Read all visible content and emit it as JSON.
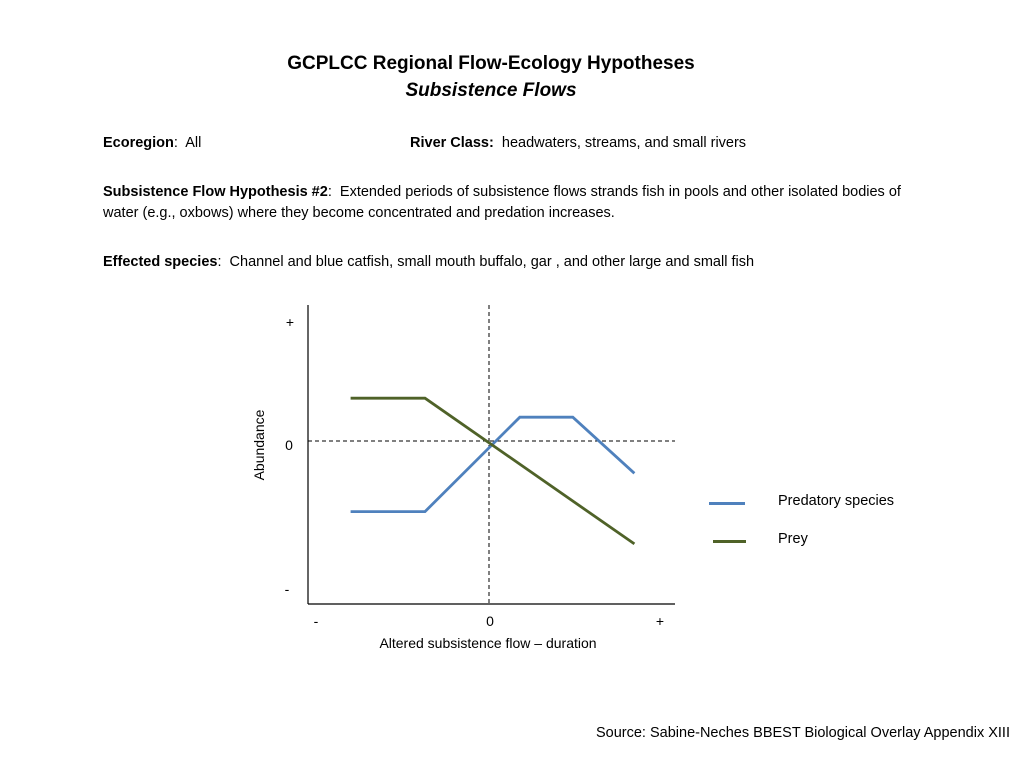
{
  "header": {
    "title": "GCPLCC Regional Flow-Ecology Hypotheses",
    "subtitle": "Subsistence Flows"
  },
  "info": {
    "ecoregion_label": "Ecoregion",
    "ecoregion_value": "All",
    "river_class_label": "River Class:",
    "river_class_value": "headwaters, streams, and small rivers",
    "hypothesis_label": "Subsistence Flow Hypothesis #2",
    "hypothesis_text": "Extended periods of subsistence flows strands fish in pools and other isolated bodies of water (e.g., oxbows) where they become concentrated and predation increases.",
    "species_label": "Effected species",
    "species_text": "Channel and blue catfish, small mouth buffalo, gar , and other large and small fish"
  },
  "source": "Source:  Sabine-Neches BBEST Biological Overlay Appendix XIII",
  "chart_data": {
    "type": "line",
    "title": "",
    "xlabel": "Altered subsistence flow – duration",
    "ylabel": "Abundance",
    "x_tick_labels": {
      "minus": "-",
      "zero": "0",
      "plus": "+"
    },
    "y_tick_labels": {
      "plus": "+",
      "zero": "0",
      "minus": "-"
    },
    "xlim": [
      -1.0,
      1.0
    ],
    "ylim": [
      -1.0,
      1.0
    ],
    "reference_lines": {
      "x_zero": "dashed",
      "y_zero": "dashed"
    },
    "grid": false,
    "legend_position": "right",
    "series": [
      {
        "name": "Predatory species",
        "color": "#4f81bd",
        "points": [
          [
            -0.8,
            -0.48
          ],
          [
            -0.37,
            -0.48
          ],
          [
            0.18,
            0.2
          ],
          [
            0.49,
            0.2
          ],
          [
            0.85,
            -0.22
          ]
        ]
      },
      {
        "name": "Prey",
        "color": "#4f6228",
        "points": [
          [
            -0.8,
            0.36
          ],
          [
            -0.37,
            0.36
          ],
          [
            0.85,
            -0.7
          ]
        ]
      }
    ]
  }
}
